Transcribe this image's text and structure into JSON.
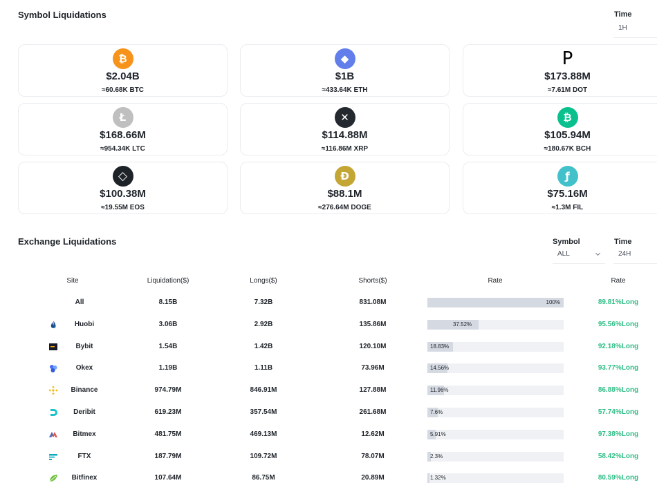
{
  "symbol_section": {
    "title": "Symbol Liquidations",
    "time_label": "Time",
    "time_value": "1H"
  },
  "symbols": [
    {
      "icon": "bitcoin-icon",
      "glyph": "₿",
      "color": "#f7931a",
      "amount": "$2.04B",
      "sub": "≈60.68K BTC"
    },
    {
      "icon": "ethereum-icon",
      "glyph": "◆",
      "color": "#627eea",
      "amount": "$1B",
      "sub": "≈433.64K ETH"
    },
    {
      "icon": "polkadot-icon",
      "glyph": "P",
      "color": "#ffffff",
      "amount": "$173.88M",
      "sub": "≈7.61M DOT"
    },
    {
      "icon": "litecoin-icon",
      "glyph": "Ł",
      "color": "#bfbfbf",
      "amount": "$168.66M",
      "sub": "≈954.34K LTC"
    },
    {
      "icon": "xrp-icon",
      "glyph": "✕",
      "color": "#23292f",
      "amount": "$114.88M",
      "sub": "≈116.86M XRP"
    },
    {
      "icon": "bitcoin-cash-icon",
      "glyph": "₿",
      "color": "#0ac18e",
      "amount": "$105.94M",
      "sub": "≈180.67K BCH"
    },
    {
      "icon": "eos-icon",
      "glyph": "◇",
      "color": "#1e2329",
      "amount": "$100.38M",
      "sub": "≈19.55M EOS"
    },
    {
      "icon": "dogecoin-icon",
      "glyph": "Ð",
      "color": "#c3a634",
      "amount": "$88.1M",
      "sub": "≈276.64M DOGE"
    },
    {
      "icon": "filecoin-icon",
      "glyph": "ƒ",
      "color": "#42c1ca",
      "amount": "$75.16M",
      "sub": "≈1.3M FIL"
    }
  ],
  "exchange_section": {
    "title": "Exchange Liquidations",
    "symbol_label": "Symbol",
    "symbol_value": "ALL",
    "time_label": "Time",
    "time_value": "24H"
  },
  "table": {
    "headers": [
      "Site",
      "Liquidation($)",
      "Longs($)",
      "Shorts($)",
      "Rate",
      "Rate"
    ],
    "rows": [
      {
        "site": "All",
        "icon": "",
        "liquidation": "8.15B",
        "longs": "7.32B",
        "shorts": "831.08M",
        "rate_pct": 100,
        "rate_label": "100%",
        "long_rate": "89.81%Long"
      },
      {
        "site": "Huobi",
        "icon": "huobi-icon",
        "icon_color": "#1c4c8c",
        "liquidation": "3.06B",
        "longs": "2.92B",
        "shorts": "135.86M",
        "rate_pct": 37.52,
        "rate_label": "37.52%",
        "long_rate": "95.56%Long"
      },
      {
        "site": "Bybit",
        "icon": "bybit-icon",
        "icon_color": "#15192a",
        "liquidation": "1.54B",
        "longs": "1.42B",
        "shorts": "120.10M",
        "rate_pct": 18.83,
        "rate_label": "18.83%",
        "long_rate": "92.18%Long"
      },
      {
        "site": "Okex",
        "icon": "okex-icon",
        "icon_color": "#4a6cf7",
        "liquidation": "1.19B",
        "longs": "1.11B",
        "shorts": "73.96M",
        "rate_pct": 14.56,
        "rate_label": "14.56%",
        "long_rate": "93.77%Long"
      },
      {
        "site": "Binance",
        "icon": "binance-icon",
        "icon_color": "#f0b90b",
        "liquidation": "974.79M",
        "longs": "846.91M",
        "shorts": "127.88M",
        "rate_pct": 11.96,
        "rate_label": "11.96%",
        "long_rate": "86.88%Long"
      },
      {
        "site": "Deribit",
        "icon": "deribit-icon",
        "icon_color": "#19c1c9",
        "liquidation": "619.23M",
        "longs": "357.54M",
        "shorts": "261.68M",
        "rate_pct": 7.6,
        "rate_label": "7.6%",
        "long_rate": "57.74%Long"
      },
      {
        "site": "Bitmex",
        "icon": "bitmex-icon",
        "icon_color": "#e0544f",
        "liquidation": "481.75M",
        "longs": "469.13M",
        "shorts": "12.62M",
        "rate_pct": 5.91,
        "rate_label": "5.91%",
        "long_rate": "97.38%Long"
      },
      {
        "site": "FTX",
        "icon": "ftx-icon",
        "icon_color": "#11a9bc",
        "liquidation": "187.79M",
        "longs": "109.72M",
        "shorts": "78.07M",
        "rate_pct": 2.3,
        "rate_label": "2.3%",
        "long_rate": "58.42%Long"
      },
      {
        "site": "Bitfinex",
        "icon": "bitfinex-icon",
        "icon_color": "#6fbf3f",
        "liquidation": "107.64M",
        "longs": "86.75M",
        "shorts": "20.89M",
        "rate_pct": 1.32,
        "rate_label": "1.32%",
        "long_rate": "80.59%Long"
      }
    ]
  },
  "colors": {
    "long_green": "#2ebd85",
    "bar_fill": "#d5d9e2",
    "bar_track": "#f0f1f4"
  }
}
